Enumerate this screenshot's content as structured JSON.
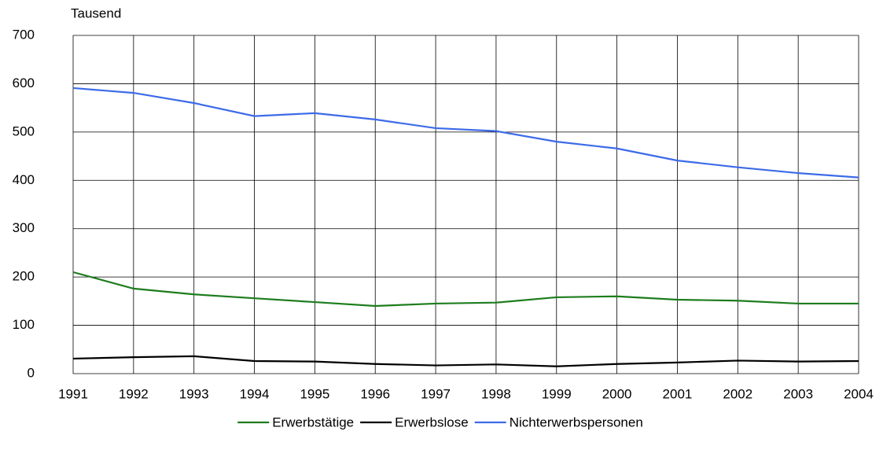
{
  "chart_data": {
    "type": "line",
    "y_label": "Tausend",
    "x": [
      1991,
      1992,
      1993,
      1994,
      1995,
      1996,
      1997,
      1998,
      1999,
      2000,
      2001,
      2002,
      2003,
      2004
    ],
    "xlim": [
      1991,
      2004
    ],
    "xticks": [
      1991,
      1992,
      1993,
      1994,
      1995,
      1996,
      1997,
      1998,
      1999,
      2000,
      2001,
      2002,
      2003,
      2004
    ],
    "ylim": [
      0,
      700
    ],
    "yticks": [
      0,
      100,
      200,
      300,
      400,
      500,
      600,
      700
    ],
    "grid": true,
    "series": [
      {
        "name": "Erwerbstätige",
        "color": "#1e7d1e",
        "values": [
          210,
          176,
          164,
          156,
          148,
          140,
          145,
          147,
          158,
          160,
          153,
          151,
          145,
          145
        ]
      },
      {
        "name": "Erwerbslose",
        "color": "#000000",
        "values": [
          31,
          34,
          36,
          26,
          25,
          20,
          17,
          19,
          15,
          20,
          23,
          27,
          25,
          26
        ]
      },
      {
        "name": "Nichterwerbspersonen",
        "color": "#3d6be8",
        "values": [
          591,
          581,
          560,
          533,
          539,
          526,
          508,
          502,
          480,
          466,
          441,
          427,
          415,
          406
        ]
      }
    ]
  }
}
